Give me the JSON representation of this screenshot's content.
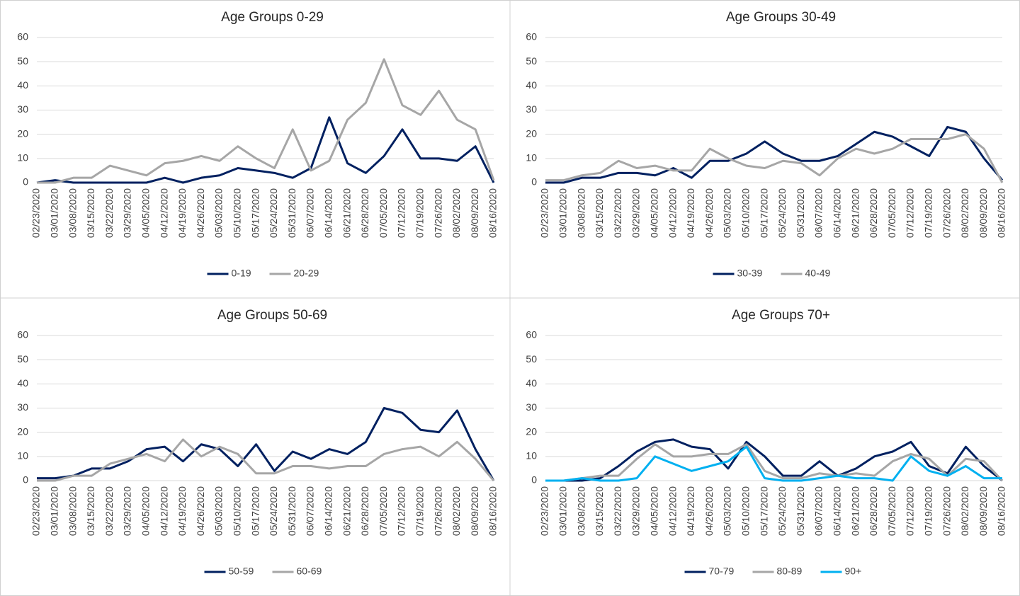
{
  "chart_data": [
    {
      "type": "line",
      "title": "Age Groups 0-29",
      "categories": [
        "02/23/2020",
        "03/01/2020",
        "03/08/2020",
        "03/15/2020",
        "03/22/2020",
        "03/29/2020",
        "04/05/2020",
        "04/12/2020",
        "04/19/2020",
        "04/26/2020",
        "05/03/2020",
        "05/10/2020",
        "05/17/2020",
        "05/24/2020",
        "05/31/2020",
        "06/07/2020",
        "06/14/2020",
        "06/21/2020",
        "06/28/2020",
        "07/05/2020",
        "07/12/2020",
        "07/19/2020",
        "07/26/2020",
        "08/02/2020",
        "08/09/2020",
        "08/16/2020"
      ],
      "series": [
        {
          "name": "0-19",
          "color": "#002060",
          "values": [
            0,
            1,
            0,
            0,
            0,
            0,
            0,
            2,
            0,
            2,
            3,
            6,
            5,
            4,
            2,
            6,
            27,
            8,
            4,
            11,
            22,
            10,
            10,
            9,
            15,
            0
          ]
        },
        {
          "name": "20-29",
          "color": "#a6a6a6",
          "values": [
            0,
            0,
            2,
            2,
            7,
            5,
            3,
            8,
            9,
            11,
            9,
            15,
            10,
            6,
            22,
            5,
            9,
            26,
            33,
            51,
            32,
            28,
            38,
            26,
            22,
            1
          ]
        }
      ],
      "ylim": [
        0,
        60
      ],
      "yticks": [
        0,
        10,
        20,
        30,
        40,
        50,
        60
      ],
      "grid": true,
      "legend": "bottom"
    },
    {
      "type": "line",
      "title": "Age Groups 30-49",
      "categories": [
        "02/23/2020",
        "03/01/2020",
        "03/08/2020",
        "03/15/2020",
        "03/22/2020",
        "03/29/2020",
        "04/05/2020",
        "04/12/2020",
        "04/19/2020",
        "04/26/2020",
        "05/03/2020",
        "05/10/2020",
        "05/17/2020",
        "05/24/2020",
        "05/31/2020",
        "06/07/2020",
        "06/14/2020",
        "06/21/2020",
        "06/28/2020",
        "07/05/2020",
        "07/12/2020",
        "07/19/2020",
        "07/26/2020",
        "08/02/2020",
        "08/09/2020",
        "08/16/2020"
      ],
      "series": [
        {
          "name": "30-39",
          "color": "#002060",
          "values": [
            0,
            0,
            2,
            2,
            4,
            4,
            3,
            6,
            2,
            9,
            9,
            12,
            17,
            12,
            9,
            9,
            11,
            16,
            21,
            19,
            15,
            11,
            23,
            21,
            10,
            1
          ]
        },
        {
          "name": "40-49",
          "color": "#a6a6a6",
          "values": [
            1,
            1,
            3,
            4,
            9,
            6,
            7,
            5,
            5,
            14,
            10,
            7,
            6,
            9,
            8,
            3,
            10,
            14,
            12,
            14,
            18,
            18,
            18,
            20,
            14,
            0
          ]
        }
      ],
      "ylim": [
        0,
        60
      ],
      "yticks": [
        0,
        10,
        20,
        30,
        40,
        50,
        60
      ],
      "grid": true,
      "legend": "bottom"
    },
    {
      "type": "line",
      "title": "Age Groups 50-69",
      "categories": [
        "02/23/2020",
        "03/01/2020",
        "03/08/2020",
        "03/15/2020",
        "03/22/2020",
        "03/29/2020",
        "04/05/2020",
        "04/12/2020",
        "04/19/2020",
        "04/26/2020",
        "05/03/2020",
        "05/10/2020",
        "05/17/2020",
        "05/24/2020",
        "05/31/2020",
        "06/07/2020",
        "06/14/2020",
        "06/21/2020",
        "06/28/2020",
        "07/05/2020",
        "07/12/2020",
        "07/19/2020",
        "07/26/2020",
        "08/02/2020",
        "08/09/2020",
        "08/16/2020"
      ],
      "series": [
        {
          "name": "50-59",
          "color": "#002060",
          "values": [
            1,
            1,
            2,
            5,
            5,
            8,
            13,
            14,
            8,
            15,
            13,
            6,
            15,
            4,
            12,
            9,
            13,
            11,
            16,
            30,
            28,
            21,
            20,
            29,
            13,
            0
          ]
        },
        {
          "name": "60-69",
          "color": "#a6a6a6",
          "values": [
            0,
            0,
            2,
            2,
            7,
            9,
            11,
            8,
            17,
            10,
            14,
            11,
            3,
            3,
            6,
            6,
            5,
            6,
            6,
            11,
            13,
            14,
            10,
            16,
            9,
            0
          ]
        }
      ],
      "ylim": [
        0,
        60
      ],
      "yticks": [
        0,
        10,
        20,
        30,
        40,
        50,
        60
      ],
      "grid": true,
      "legend": "bottom"
    },
    {
      "type": "line",
      "title": "Age Groups 70+",
      "categories": [
        "02/23/2020",
        "03/01/2020",
        "03/08/2020",
        "03/15/2020",
        "03/22/2020",
        "03/29/2020",
        "04/05/2020",
        "04/12/2020",
        "04/19/2020",
        "04/26/2020",
        "05/03/2020",
        "05/10/2020",
        "05/17/2020",
        "05/24/2020",
        "05/31/2020",
        "06/07/2020",
        "06/14/2020",
        "06/21/2020",
        "06/28/2020",
        "07/05/2020",
        "07/12/2020",
        "07/19/2020",
        "07/26/2020",
        "08/02/2020",
        "08/09/2020",
        "08/16/2020"
      ],
      "series": [
        {
          "name": "70-79",
          "color": "#002060",
          "values": [
            0,
            0,
            0,
            1,
            6,
            12,
            16,
            17,
            14,
            13,
            5,
            16,
            10,
            2,
            2,
            8,
            2,
            5,
            10,
            12,
            16,
            6,
            3,
            14,
            6,
            0
          ]
        },
        {
          "name": "80-89",
          "color": "#a6a6a6",
          "values": [
            0,
            0,
            1,
            2,
            2,
            9,
            15,
            10,
            10,
            11,
            11,
            15,
            4,
            1,
            1,
            3,
            2,
            3,
            2,
            8,
            11,
            9,
            2,
            9,
            8,
            0
          ]
        },
        {
          "name": "90+",
          "color": "#00b0f0",
          "values": [
            0,
            0,
            1,
            0,
            0,
            1,
            10,
            7,
            4,
            6,
            8,
            14,
            1,
            0,
            0,
            1,
            2,
            1,
            1,
            0,
            10,
            4,
            2,
            6,
            1,
            1
          ]
        }
      ],
      "ylim": [
        0,
        60
      ],
      "yticks": [
        0,
        10,
        20,
        30,
        40,
        50,
        60
      ],
      "grid": true,
      "legend": "bottom"
    }
  ]
}
